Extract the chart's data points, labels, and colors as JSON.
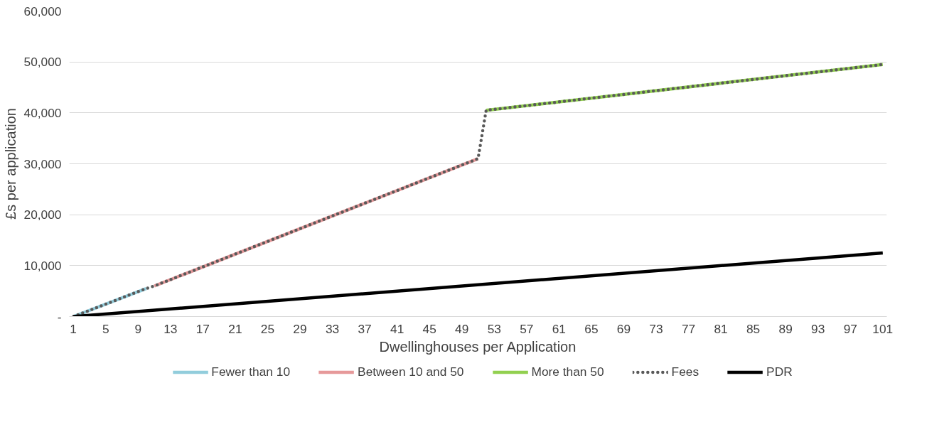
{
  "chart_data": {
    "type": "line",
    "xlabel": "Dwellinghouses per Application",
    "ylabel": "£s per application",
    "xlim": [
      0.5,
      101.5
    ],
    "xticks": [
      1,
      5,
      9,
      13,
      17,
      21,
      25,
      29,
      33,
      37,
      41,
      45,
      49,
      53,
      57,
      61,
      65,
      69,
      73,
      77,
      81,
      85,
      89,
      93,
      97,
      101
    ],
    "ylim": [
      0,
      60000
    ],
    "yticks": [
      {
        "value": 0,
        "label": "-"
      },
      {
        "value": 10000,
        "label": "10,000"
      },
      {
        "value": 20000,
        "label": "20,000"
      },
      {
        "value": 30000,
        "label": "30,000"
      },
      {
        "value": 40000,
        "label": "40,000"
      },
      {
        "value": 50000,
        "label": "50,000"
      },
      {
        "value": 60000,
        "label": "60,000"
      }
    ],
    "grid": "y",
    "legend": "bottom",
    "marker": "none",
    "series": [
      {
        "name": "Fewer than 10",
        "color": "#92cddc",
        "line_style": "solid",
        "x": [
          1,
          10
        ],
        "values": [
          0,
          5500
        ]
      },
      {
        "name": "Between 10 and 50",
        "color": "#e6999a",
        "line_style": "solid",
        "x": [
          11,
          51
        ],
        "values": [
          6000,
          31000
        ]
      },
      {
        "name": "More than 50",
        "color": "#92d050",
        "line_style": "solid",
        "x": [
          52,
          101
        ],
        "values": [
          40500,
          49500
        ]
      },
      {
        "name": "Fees",
        "color": "#595959",
        "line_style": "dotted",
        "x": [
          1,
          10,
          11,
          51,
          52,
          101
        ],
        "values": [
          0,
          5500,
          6000,
          31000,
          40500,
          49500
        ]
      },
      {
        "name": "PDR",
        "color": "#000000",
        "line_style": "solid",
        "x": [
          1,
          101
        ],
        "values": [
          0,
          12500
        ]
      }
    ]
  }
}
